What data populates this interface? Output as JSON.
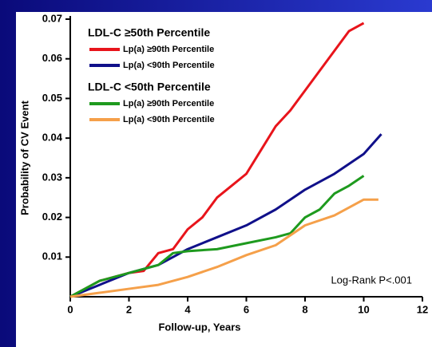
{
  "chart_data": {
    "type": "line",
    "xlabel": "Follow-up, Years",
    "ylabel": "Probability of CV Event",
    "annotation": "Log-Rank P<.001",
    "xlim": [
      0,
      12
    ],
    "xticks": [
      0,
      2,
      4,
      6,
      8,
      10,
      12
    ],
    "ylim": [
      0,
      0.07
    ],
    "yticks": [
      0.01,
      0.02,
      0.03,
      0.04,
      0.05,
      0.06,
      0.07
    ],
    "series": [
      {
        "group": "LDL-C ≥50th Percentile",
        "name": "Lp(a) ≥90th Percentile",
        "color": "#e8141b",
        "x": [
          0,
          0.5,
          1,
          1.5,
          2,
          2.5,
          3,
          3.5,
          4,
          4.5,
          5,
          5.5,
          6,
          6.5,
          7,
          7.5,
          8,
          8.5,
          9,
          9.5,
          10
        ],
        "values": [
          0,
          0.002,
          0.004,
          0.005,
          0.006,
          0.0065,
          0.011,
          0.012,
          0.017,
          0.02,
          0.025,
          0.028,
          0.031,
          0.037,
          0.043,
          0.047,
          0.052,
          0.057,
          0.062,
          0.067,
          0.069
        ]
      },
      {
        "group": "LDL-C ≥50th Percentile",
        "name": "Lp(a) <90th Percentile",
        "color": "#10108a",
        "x": [
          0,
          1,
          2,
          3,
          4,
          5,
          6,
          7,
          8,
          9,
          10,
          10.6
        ],
        "values": [
          0,
          0.003,
          0.006,
          0.008,
          0.012,
          0.015,
          0.018,
          0.022,
          0.027,
          0.031,
          0.036,
          0.041
        ]
      },
      {
        "group": "LDL-C <50th Percentile",
        "name": "Lp(a) ≥90th Percentile",
        "color": "#1e9a1e",
        "x": [
          0,
          1,
          2,
          3,
          3.5,
          4,
          5,
          6,
          7,
          7.5,
          8,
          8.5,
          9,
          9.5,
          10
        ],
        "values": [
          0,
          0.004,
          0.006,
          0.008,
          0.011,
          0.0115,
          0.012,
          0.0135,
          0.015,
          0.016,
          0.02,
          0.022,
          0.026,
          0.028,
          0.0305
        ]
      },
      {
        "group": "LDL-C <50th Percentile",
        "name": "Lp(a) <90th Percentile",
        "color": "#f5a04a",
        "x": [
          0,
          1,
          2,
          3,
          4,
          5,
          6,
          7,
          8,
          9,
          10,
          10.5
        ],
        "values": [
          0,
          0.001,
          0.002,
          0.003,
          0.005,
          0.0075,
          0.0105,
          0.013,
          0.018,
          0.0205,
          0.0245,
          0.0245
        ]
      }
    ]
  }
}
